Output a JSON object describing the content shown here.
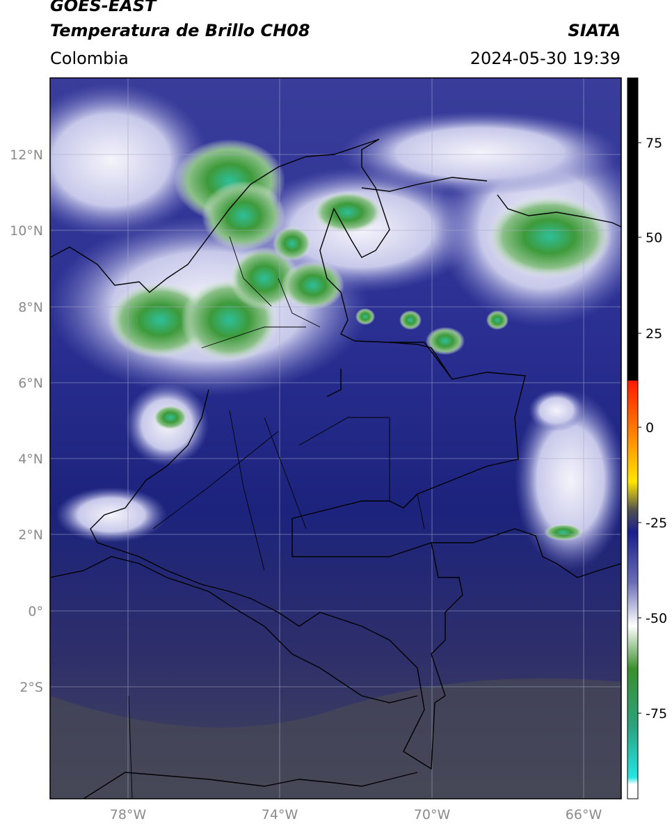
{
  "header": {
    "satellite": "GOES-EAST",
    "product": "Temperatura de Brillo CH08",
    "org": "SIATA",
    "region": "Colombia",
    "datetime": "2024-05-30 19:39"
  },
  "axes": {
    "lat_labels": [
      "12°N",
      "10°N",
      "8°N",
      "6°N",
      "4°N",
      "2°N",
      "0°",
      "2°S"
    ],
    "lon_labels": [
      "78°W",
      "74°W",
      "70°W",
      "66°W"
    ]
  },
  "colorbar": {
    "ticks": [
      "75",
      "50",
      "25",
      "0",
      "-25",
      "-50",
      "-75"
    ]
  },
  "colors": {
    "cold_cloud": "#2f8f2f",
    "deep_convection": "#3fd0b0",
    "mid_level": "#1f2a8a",
    "dry_air": "#4a4a5a"
  }
}
